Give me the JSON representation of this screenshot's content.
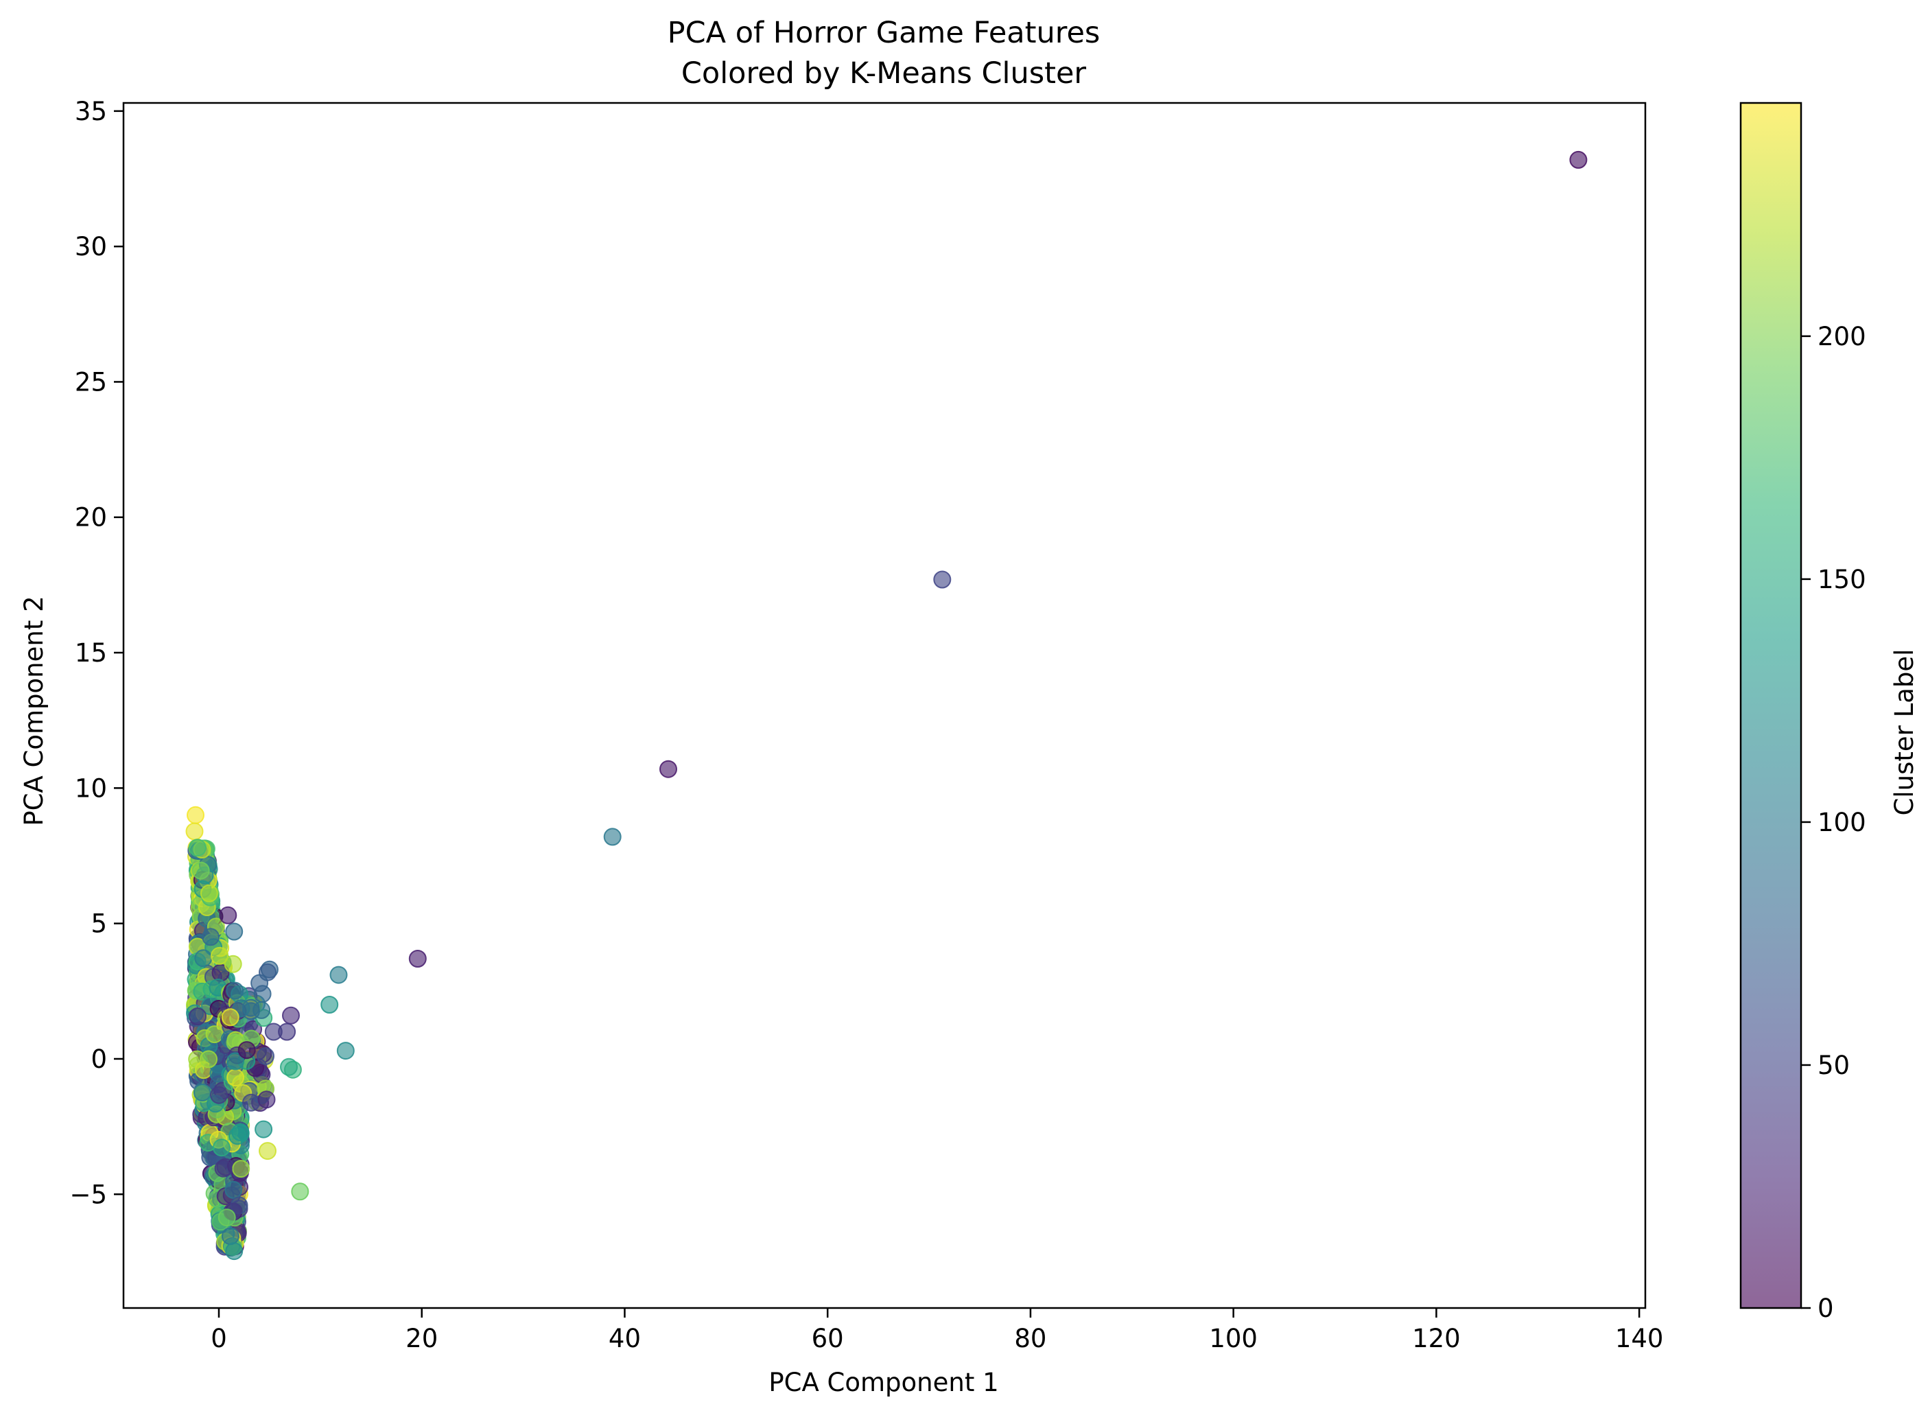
{
  "chart_data": {
    "type": "scatter",
    "title": "PCA of Horror Game Features",
    "subtitle": "Colored by K-Means Cluster",
    "xlabel": "PCA Component 1",
    "ylabel": "PCA Component 2",
    "xlim": [
      -9.4,
      140.6
    ],
    "ylim": [
      -9.2,
      35.3
    ],
    "xticks": [
      0,
      20,
      40,
      60,
      80,
      100,
      120,
      140
    ],
    "xtick_labels": [
      "0",
      "20",
      "40",
      "60",
      "80",
      "100",
      "120",
      "140"
    ],
    "yticks": [
      -5,
      0,
      5,
      10,
      15,
      20,
      25,
      30,
      35
    ],
    "ytick_labels": [
      "−5",
      "0",
      "5",
      "10",
      "15",
      "20",
      "25",
      "30",
      "35"
    ],
    "grid": false,
    "point_alpha": 0.6,
    "colorbar": {
      "label": "Cluster Label",
      "colormap": "viridis",
      "range": [
        0,
        248
      ],
      "ticks": [
        0,
        50,
        100,
        150,
        200
      ],
      "tick_labels": [
        "0",
        "50",
        "100",
        "150",
        "200"
      ]
    },
    "outliers": [
      {
        "x": 134.0,
        "y": 33.2,
        "cluster": 10
      },
      {
        "x": 71.3,
        "y": 17.7,
        "cluster": 50
      },
      {
        "x": 44.3,
        "y": 10.7,
        "cluster": 15
      },
      {
        "x": 38.8,
        "y": 8.2,
        "cluster": 100
      },
      {
        "x": 19.6,
        "y": 3.7,
        "cluster": 20
      },
      {
        "x": 12.5,
        "y": 0.3,
        "cluster": 120
      },
      {
        "x": 11.8,
        "y": 3.1,
        "cluster": 105
      },
      {
        "x": 10.9,
        "y": 2.0,
        "cluster": 130
      },
      {
        "x": 8.0,
        "y": -4.9,
        "cluster": 190
      },
      {
        "x": 7.3,
        "y": -0.4,
        "cluster": 160
      },
      {
        "x": 6.9,
        "y": -0.3,
        "cluster": 150
      },
      {
        "x": 7.1,
        "y": 1.6,
        "cluster": 30
      },
      {
        "x": 6.7,
        "y": 1.0,
        "cluster": 40
      },
      {
        "x": 5.0,
        "y": 3.3,
        "cluster": 80
      },
      {
        "x": 4.8,
        "y": 3.2,
        "cluster": 70
      },
      {
        "x": 4.6,
        "y": -1.1,
        "cluster": 210
      },
      {
        "x": 4.7,
        "y": -1.5,
        "cluster": 30
      },
      {
        "x": 4.8,
        "y": -3.4,
        "cluster": 230
      },
      {
        "x": 4.4,
        "y": -2.6,
        "cluster": 130
      },
      {
        "x": 4.6,
        "y": 0.1,
        "cluster": 60
      },
      {
        "x": 4.3,
        "y": 2.4,
        "cluster": 80
      },
      {
        "x": 4.0,
        "y": 2.8,
        "cluster": 75
      },
      {
        "x": 5.4,
        "y": 1.0,
        "cluster": 45
      },
      {
        "x": 4.2,
        "y": 1.8,
        "cluster": 90
      },
      {
        "x": 1.5,
        "y": 4.7,
        "cluster": 90
      },
      {
        "x": 0.9,
        "y": 5.3,
        "cluster": 20
      },
      {
        "x": 1.4,
        "y": 3.5,
        "cluster": 220
      },
      {
        "x": 1.5,
        "y": -7.1,
        "cluster": 120
      },
      {
        "x": -2.3,
        "y": 9.0,
        "cluster": 245
      },
      {
        "x": -2.4,
        "y": 8.4,
        "cluster": 240
      },
      {
        "x": -2.1,
        "y": 7.8,
        "cluster": 170
      }
    ],
    "dense_cluster": {
      "description_points": 900,
      "x_center_range": [
        -2.5,
        3.0
      ],
      "y_range": [
        -7.0,
        7.8
      ]
    }
  }
}
